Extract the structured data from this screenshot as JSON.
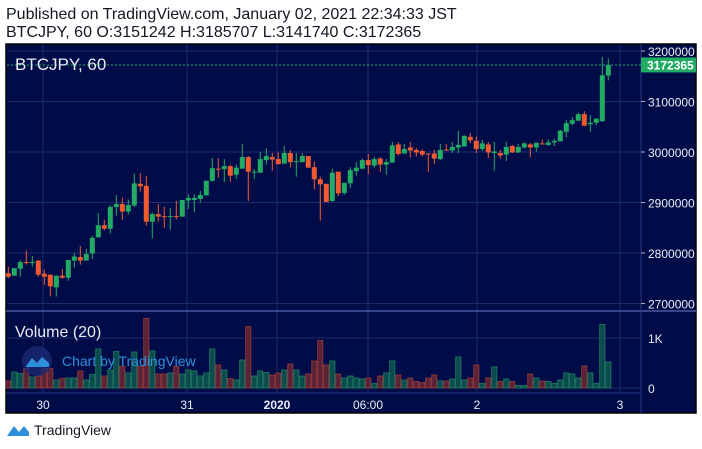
{
  "header": {
    "published": "Published on TradingView.com, January 02, 2021 22:34:33 JST",
    "ohlc_line": "BTCJPY, 60 O:3151242 H:3185707 L:3141740 C:3172365"
  },
  "colors": {
    "background": "#000c47",
    "up": "#22ab65",
    "down": "#f05a31",
    "grid": "#1e2a6c",
    "watermark": "#2e8fdc"
  },
  "footer": {
    "brand": "TradingView"
  },
  "chart_data": {
    "type": "candlestick",
    "symbol_label": "BTCJPY, 60",
    "last_price_label": "3172365",
    "y_ticks": [
      "3200000",
      "3100000",
      "3000000",
      "2900000",
      "2800000",
      "2700000"
    ],
    "ylim": [
      2690000,
      3215000
    ],
    "x_ticks": [
      "30",
      "31",
      "2020",
      "06:00",
      "2",
      "3"
    ],
    "grid": true,
    "ohlc": [
      [
        2760000,
        2773000,
        2750000,
        2753000
      ],
      [
        2755000,
        2770000,
        2755000,
        2770000
      ],
      [
        2769000,
        2786000,
        2753000,
        2782000
      ],
      [
        2782000,
        2805000,
        2777000,
        2781000
      ],
      [
        2781000,
        2794000,
        2773000,
        2782000
      ],
      [
        2785000,
        2786000,
        2753000,
        2757000
      ],
      [
        2759000,
        2767000,
        2737000,
        2753000
      ],
      [
        2757000,
        2757000,
        2714000,
        2734000
      ],
      [
        2732000,
        2756000,
        2714000,
        2755000
      ],
      [
        2755000,
        2768000,
        2749000,
        2751000
      ],
      [
        2751000,
        2786000,
        2745000,
        2786000
      ],
      [
        2785000,
        2800000,
        2771000,
        2793000
      ],
      [
        2792000,
        2814000,
        2777000,
        2785000
      ],
      [
        2785000,
        2808000,
        2785000,
        2798000
      ],
      [
        2799000,
        2834000,
        2788000,
        2830000
      ],
      [
        2831000,
        2879000,
        2831000,
        2855000
      ],
      [
        2855000,
        2866000,
        2845000,
        2848000
      ],
      [
        2848000,
        2895000,
        2839000,
        2891000
      ],
      [
        2891000,
        2915000,
        2874000,
        2897000
      ],
      [
        2897000,
        2910000,
        2866000,
        2882000
      ],
      [
        2882000,
        2906000,
        2876000,
        2895000
      ],
      [
        2894000,
        2957000,
        2891000,
        2938000
      ],
      [
        2937000,
        2958000,
        2922000,
        2932000
      ],
      [
        2933000,
        2953000,
        2854000,
        2862000
      ],
      [
        2862000,
        2880000,
        2829000,
        2877000
      ],
      [
        2877000,
        2897000,
        2862000,
        2872000
      ],
      [
        2873000,
        2892000,
        2850000,
        2872000
      ],
      [
        2872000,
        2889000,
        2846000,
        2873000
      ],
      [
        2873000,
        2903000,
        2866000,
        2872000
      ],
      [
        2872000,
        2905000,
        2872000,
        2905000
      ],
      [
        2904000,
        2916000,
        2887000,
        2909000
      ],
      [
        2905000,
        2916000,
        2881000,
        2909000
      ],
      [
        2907000,
        2923000,
        2900000,
        2915000
      ],
      [
        2914000,
        2943000,
        2914000,
        2943000
      ],
      [
        2943000,
        2988000,
        2941000,
        2968000
      ],
      [
        2967000,
        2988000,
        2949000,
        2966000
      ],
      [
        2966000,
        2986000,
        2941000,
        2972000
      ],
      [
        2972000,
        2975000,
        2941000,
        2953000
      ],
      [
        2955000,
        2975000,
        2947000,
        2969000
      ],
      [
        2967000,
        3016000,
        2967000,
        2990000
      ],
      [
        2990000,
        2992000,
        2903000,
        2961000
      ],
      [
        2959000,
        2966000,
        2947000,
        2961000
      ],
      [
        2959000,
        3000000,
        2959000,
        2986000
      ],
      [
        2984000,
        3007000,
        2975000,
        2992000
      ],
      [
        2990000,
        2998000,
        2963000,
        2985000
      ],
      [
        2986000,
        2999000,
        2975000,
        2976000
      ],
      [
        2977000,
        3012000,
        2977000,
        2998000
      ],
      [
        2998000,
        3004000,
        2969000,
        2980000
      ],
      [
        2981000,
        2998000,
        2951000,
        2982000
      ],
      [
        2980000,
        2998000,
        2980000,
        2992000
      ],
      [
        2992000,
        2992000,
        2969000,
        2969000
      ],
      [
        2970000,
        2981000,
        2926000,
        2946000
      ],
      [
        2946000,
        2951000,
        2864000,
        2936000
      ],
      [
        2937000,
        2937000,
        2901000,
        2901000
      ],
      [
        2903000,
        2967000,
        2902000,
        2959000
      ],
      [
        2961000,
        2961000,
        2913000,
        2918000
      ],
      [
        2919000,
        2939000,
        2915000,
        2939000
      ],
      [
        2938000,
        2970000,
        2928000,
        2964000
      ],
      [
        2962000,
        2980000,
        2953000,
        2969000
      ],
      [
        2967000,
        2987000,
        2966000,
        2984000
      ],
      [
        2984000,
        2996000,
        2956000,
        2974000
      ],
      [
        2973000,
        2990000,
        2969000,
        2986000
      ],
      [
        2987000,
        2990000,
        2961000,
        2975000
      ],
      [
        2975000,
        2986000,
        2955000,
        2980000
      ],
      [
        2979000,
        3020000,
        2979000,
        3013000
      ],
      [
        3015000,
        3020000,
        2993000,
        2996000
      ],
      [
        2997000,
        3016000,
        2997000,
        3006000
      ],
      [
        3009000,
        3020000,
        2989000,
        3003000
      ],
      [
        3004000,
        3008000,
        2991000,
        2999000
      ],
      [
        3002000,
        3005000,
        2991000,
        2995000
      ],
      [
        2997000,
        2997000,
        2961000,
        2996000
      ],
      [
        2997000,
        3004000,
        2976000,
        2987000
      ],
      [
        2986000,
        3016000,
        2984000,
        3004000
      ],
      [
        3005000,
        3016000,
        3002000,
        3003000
      ],
      [
        3003000,
        3020000,
        2998000,
        3010000
      ],
      [
        3009000,
        3042000,
        2998000,
        3014000
      ],
      [
        3011000,
        3033000,
        3011000,
        3032000
      ],
      [
        3030000,
        3038000,
        3017000,
        3023000
      ],
      [
        3022000,
        3030000,
        2998000,
        3006000
      ],
      [
        3006000,
        3024000,
        3002000,
        3017000
      ],
      [
        3015000,
        3020000,
        2988000,
        2999000
      ],
      [
        2998000,
        3020000,
        2963000,
        3001000
      ],
      [
        2998000,
        3004000,
        2987000,
        2993000
      ],
      [
        2995000,
        3020000,
        2982000,
        3010000
      ],
      [
        3012000,
        3014000,
        2998000,
        2999000
      ],
      [
        2999000,
        3016000,
        2998000,
        3010000
      ],
      [
        3009000,
        3019000,
        3007000,
        3017000
      ],
      [
        3015000,
        3018000,
        2990000,
        3009000
      ],
      [
        3009000,
        3019000,
        3001000,
        3018000
      ],
      [
        3017000,
        3025000,
        3015000,
        3015000
      ],
      [
        3014000,
        3025000,
        3012000,
        3019000
      ],
      [
        3019000,
        3026000,
        3012000,
        3022000
      ],
      [
        3021000,
        3044000,
        3021000,
        3042000
      ],
      [
        3040000,
        3063000,
        3029000,
        3057000
      ],
      [
        3056000,
        3069000,
        3053000,
        3063000
      ],
      [
        3062000,
        3078000,
        3062000,
        3075000
      ],
      [
        3075000,
        3081000,
        3052000,
        3052000
      ],
      [
        3055000,
        3073000,
        3040000,
        3058000
      ],
      [
        3058000,
        3067000,
        3053000,
        3066000
      ],
      [
        3061000,
        3188000,
        3060000,
        3152000
      ],
      [
        3151242,
        3185707,
        3141740,
        3172365
      ]
    ],
    "volume_pane": {
      "label": "Volume (20)",
      "y_ticks": [
        "1K",
        "0"
      ],
      "values": [
        140,
        320,
        290,
        390,
        220,
        240,
        390,
        390,
        160,
        190,
        200,
        200,
        340,
        160,
        270,
        780,
        240,
        360,
        730,
        430,
        300,
        720,
        430,
        1390,
        740,
        280,
        280,
        300,
        430,
        280,
        360,
        340,
        240,
        300,
        780,
        460,
        360,
        190,
        160,
        560,
        1230,
        240,
        340,
        310,
        260,
        300,
        360,
        480,
        360,
        240,
        280,
        540,
        950,
        460,
        540,
        280,
        200,
        240,
        200,
        180,
        200,
        90,
        240,
        300,
        540,
        260,
        160,
        200,
        130,
        110,
        200,
        260,
        140,
        140,
        180,
        620,
        160,
        200,
        460,
        90,
        200,
        420,
        130,
        180,
        130,
        50,
        50,
        280,
        200,
        140,
        130,
        90,
        160,
        300,
        280,
        200,
        440,
        300,
        90,
        1270,
        520
      ]
    },
    "watermark": "Chart by TradingView"
  }
}
